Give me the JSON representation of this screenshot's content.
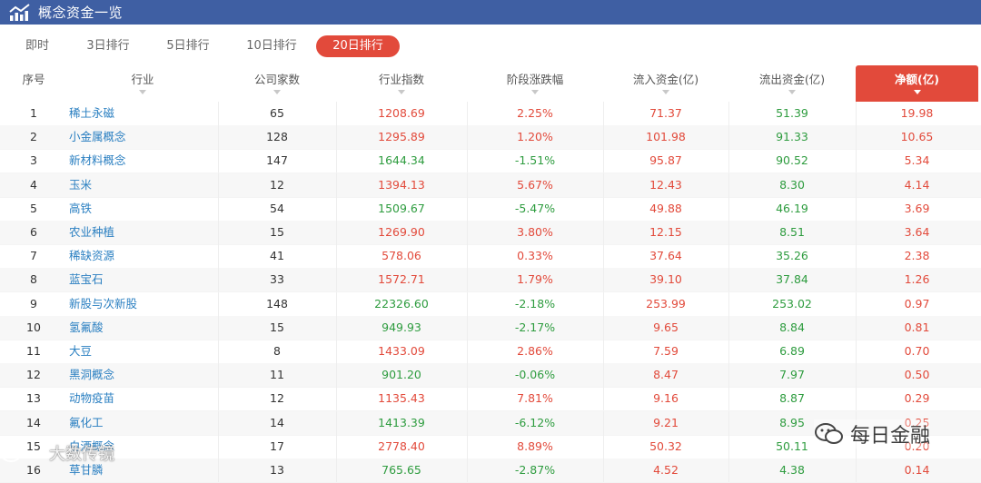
{
  "header": {
    "title": "概念资金一览"
  },
  "tabs": [
    {
      "label": "即时"
    },
    {
      "label": "3日排行"
    },
    {
      "label": "5日排行"
    },
    {
      "label": "10日排行"
    },
    {
      "label": "20日排行",
      "active": true
    }
  ],
  "columns": [
    {
      "label": "序号",
      "sortable": false
    },
    {
      "label": "行业",
      "sortable": true
    },
    {
      "label": "公司家数",
      "sortable": true
    },
    {
      "label": "行业指数",
      "sortable": true
    },
    {
      "label": "阶段涨跌幅",
      "sortable": true
    },
    {
      "label": "流入资金(亿)",
      "sortable": true
    },
    {
      "label": "流出资金(亿)",
      "sortable": true
    },
    {
      "label": "净额(亿)",
      "sortable": true,
      "active": true
    }
  ],
  "rows": [
    {
      "idx": "1",
      "name": "稀土永磁",
      "count": "65",
      "index": "1208.69",
      "change": "2.25%",
      "inflow": "71.37",
      "outflow": "51.39",
      "net": "19.98"
    },
    {
      "idx": "2",
      "name": "小金属概念",
      "count": "128",
      "index": "1295.89",
      "change": "1.20%",
      "inflow": "101.98",
      "outflow": "91.33",
      "net": "10.65"
    },
    {
      "idx": "3",
      "name": "新材料概念",
      "count": "147",
      "index": "1644.34",
      "change": "-1.51%",
      "inflow": "95.87",
      "outflow": "90.52",
      "net": "5.34"
    },
    {
      "idx": "4",
      "name": "玉米",
      "count": "12",
      "index": "1394.13",
      "change": "5.67%",
      "inflow": "12.43",
      "outflow": "8.30",
      "net": "4.14"
    },
    {
      "idx": "5",
      "name": "高铁",
      "count": "54",
      "index": "1509.67",
      "change": "-5.47%",
      "inflow": "49.88",
      "outflow": "46.19",
      "net": "3.69"
    },
    {
      "idx": "6",
      "name": "农业种植",
      "count": "15",
      "index": "1269.90",
      "change": "3.80%",
      "inflow": "12.15",
      "outflow": "8.51",
      "net": "3.64"
    },
    {
      "idx": "7",
      "name": "稀缺资源",
      "count": "41",
      "index": "578.06",
      "change": "0.33%",
      "inflow": "37.64",
      "outflow": "35.26",
      "net": "2.38"
    },
    {
      "idx": "8",
      "name": "蓝宝石",
      "count": "33",
      "index": "1572.71",
      "change": "1.79%",
      "inflow": "39.10",
      "outflow": "37.84",
      "net": "1.26"
    },
    {
      "idx": "9",
      "name": "新股与次新股",
      "count": "148",
      "index": "22326.60",
      "change": "-2.18%",
      "inflow": "253.99",
      "outflow": "253.02",
      "net": "0.97"
    },
    {
      "idx": "10",
      "name": "氢氟酸",
      "count": "15",
      "index": "949.93",
      "change": "-2.17%",
      "inflow": "9.65",
      "outflow": "8.84",
      "net": "0.81"
    },
    {
      "idx": "11",
      "name": "大豆",
      "count": "8",
      "index": "1433.09",
      "change": "2.86%",
      "inflow": "7.59",
      "outflow": "6.89",
      "net": "0.70"
    },
    {
      "idx": "12",
      "name": "黑洞概念",
      "count": "11",
      "index": "901.20",
      "change": "-0.06%",
      "inflow": "8.47",
      "outflow": "7.97",
      "net": "0.50"
    },
    {
      "idx": "13",
      "name": "动物疫苗",
      "count": "12",
      "index": "1135.43",
      "change": "7.81%",
      "inflow": "9.16",
      "outflow": "8.87",
      "net": "0.29"
    },
    {
      "idx": "14",
      "name": "氟化工",
      "count": "14",
      "index": "1413.39",
      "change": "-6.12%",
      "inflow": "9.21",
      "outflow": "8.95",
      "net": "0.25"
    },
    {
      "idx": "15",
      "name": "白酒概念",
      "count": "17",
      "index": "2778.40",
      "change": "8.89%",
      "inflow": "50.32",
      "outflow": "50.11",
      "net": "0.20"
    },
    {
      "idx": "16",
      "name": "草甘膦",
      "count": "13",
      "index": "765.65",
      "change": "-2.87%",
      "inflow": "4.52",
      "outflow": "4.38",
      "net": "0.14"
    }
  ],
  "watermarks": {
    "left": "大数传镜",
    "right": "每日金融"
  },
  "colors": {
    "header": "#3f5fa3",
    "accent": "#e24a3b",
    "up": "#e24a3b",
    "down": "#2e9c3f",
    "link": "#2a7fc1"
  }
}
